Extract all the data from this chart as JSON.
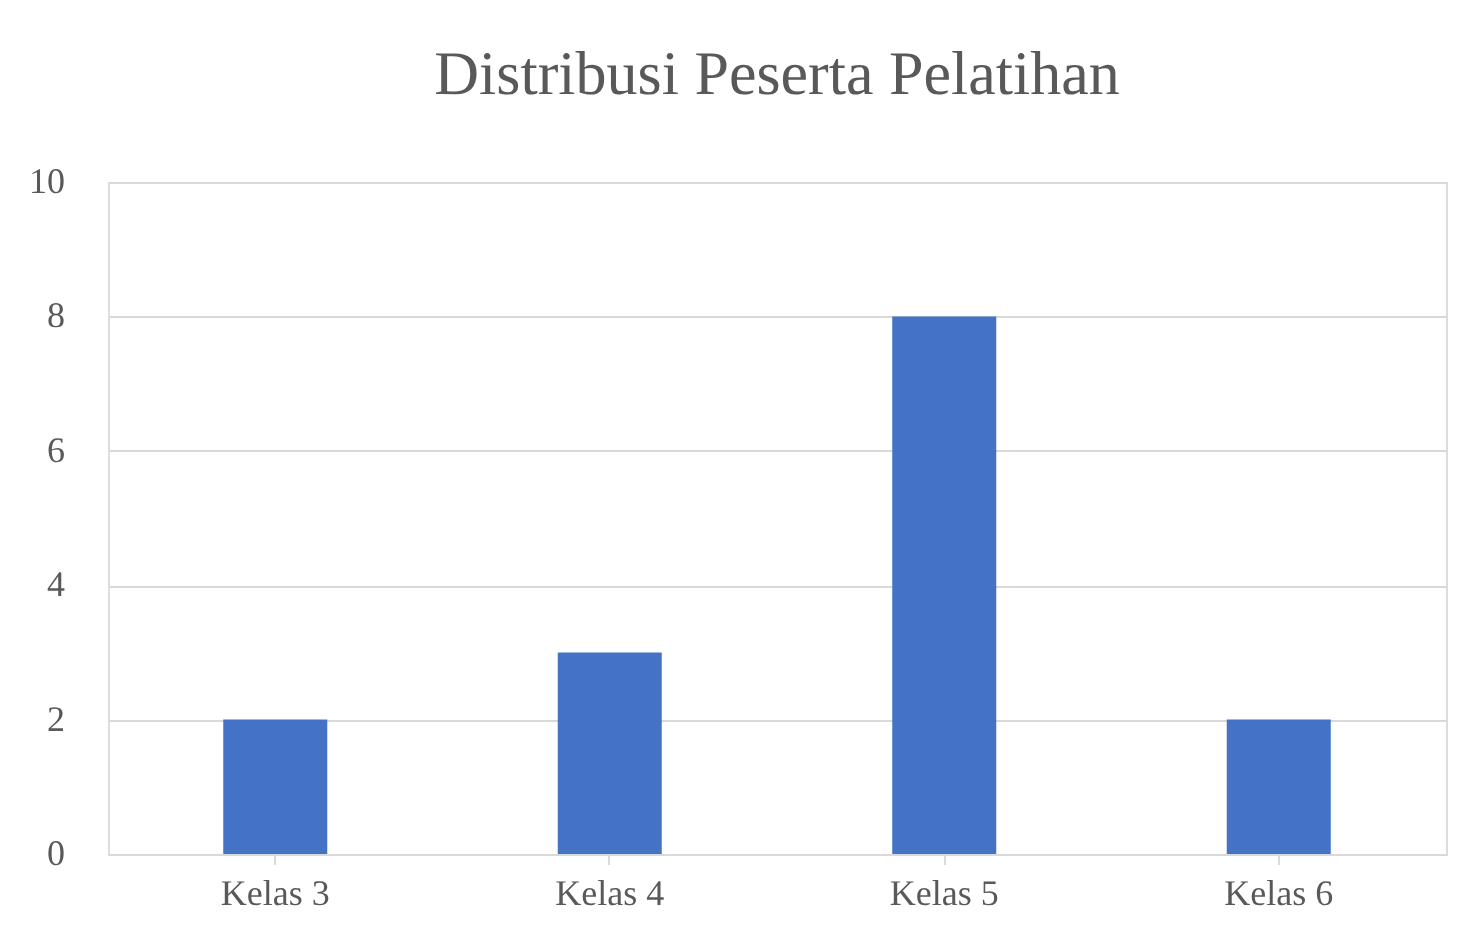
{
  "chart_data": {
    "type": "bar",
    "title": "Distribusi Peserta Pelatihan",
    "categories": [
      "Kelas 3",
      "Kelas 4",
      "Kelas 5",
      "Kelas 6"
    ],
    "values": [
      2,
      3,
      8,
      2
    ],
    "color": "#4472c4",
    "ylim": [
      0,
      10
    ],
    "yticks": [
      0,
      2,
      4,
      6,
      8,
      10
    ],
    "grid": "y"
  }
}
